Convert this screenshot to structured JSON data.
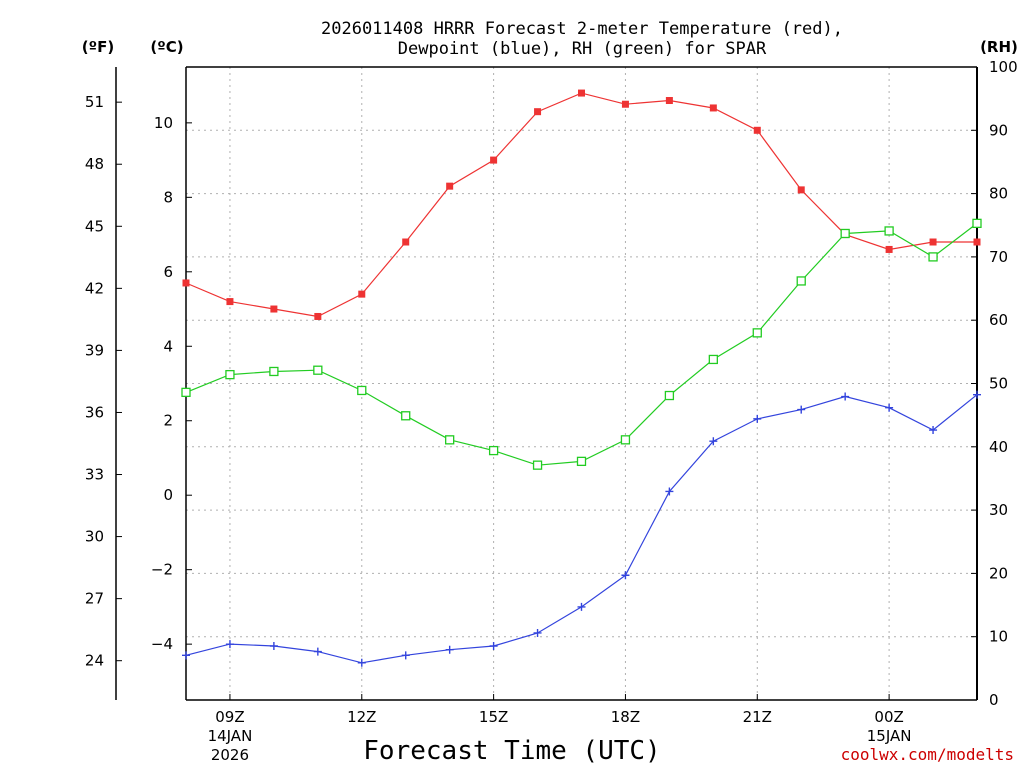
{
  "chart_data": {
    "type": "line",
    "title_line1": "2026011408 HRRR Forecast 2-meter Temperature (red),",
    "title_line2": "Dewpoint (blue), RH (green) for SPAR",
    "xlabel": "Forecast Time (UTC)",
    "credit": "coolwx.com/modelts",
    "units": {
      "fahrenheit": "(ºF)",
      "celsius": "(ºC)",
      "rh": "(RH)"
    },
    "hours": [
      "08Z",
      "09Z",
      "10Z",
      "11Z",
      "12Z",
      "13Z",
      "14Z",
      "15Z",
      "16Z",
      "17Z",
      "18Z",
      "19Z",
      "20Z",
      "21Z",
      "22Z",
      "23Z",
      "00Z",
      "01Z",
      "02Z"
    ],
    "x_ticks": [
      {
        "index": 1,
        "label": "09Z",
        "date": "14JAN",
        "year": "2026"
      },
      {
        "index": 4,
        "label": "12Z"
      },
      {
        "index": 7,
        "label": "15Z"
      },
      {
        "index": 10,
        "label": "18Z"
      },
      {
        "index": 13,
        "label": "21Z"
      },
      {
        "index": 16,
        "label": "00Z",
        "date": "15JAN"
      }
    ],
    "celsius_axis": {
      "range": [
        -5.5,
        11.5
      ],
      "ticks": [
        -4,
        -2,
        0,
        2,
        4,
        6,
        8,
        10
      ],
      "tick_labels": [
        "−4",
        "−2",
        "0",
        "2",
        "4",
        "6",
        "8",
        "10"
      ]
    },
    "fahrenheit_axis": {
      "ticks": [
        24,
        27,
        30,
        33,
        36,
        39,
        42,
        45,
        48,
        51
      ]
    },
    "rh_axis": {
      "range": [
        0,
        100
      ],
      "ticks": [
        0,
        10,
        20,
        30,
        40,
        50,
        60,
        70,
        80,
        90,
        100
      ]
    },
    "series": [
      {
        "name": "Temperature",
        "axis": "celsius",
        "color": "#ee3333",
        "marker": "filled-square",
        "values": [
          5.7,
          5.2,
          5.0,
          4.8,
          5.4,
          6.8,
          8.3,
          9.0,
          10.3,
          10.8,
          10.5,
          10.6,
          10.4,
          9.8,
          8.2,
          7.0,
          6.6,
          6.8,
          6.8
        ]
      },
      {
        "name": "Dewpoint",
        "axis": "celsius",
        "color": "#3344dd",
        "marker": "plus",
        "values": [
          -4.3,
          -4.0,
          -4.05,
          -4.2,
          -4.5,
          -4.3,
          -4.15,
          -4.05,
          -3.7,
          -3.0,
          -2.15,
          0.1,
          1.45,
          2.05,
          2.3,
          2.65,
          2.35,
          1.75,
          2.7
        ]
      },
      {
        "name": "RH",
        "axis": "rh",
        "color": "#22cc22",
        "marker": "open-square",
        "values": [
          48.6,
          51.4,
          51.9,
          52.1,
          48.9,
          44.9,
          41.1,
          39.4,
          37.1,
          37.7,
          41.1,
          48.1,
          53.8,
          58.0,
          66.2,
          73.7,
          74.1,
          70.0,
          75.3
        ]
      }
    ]
  }
}
